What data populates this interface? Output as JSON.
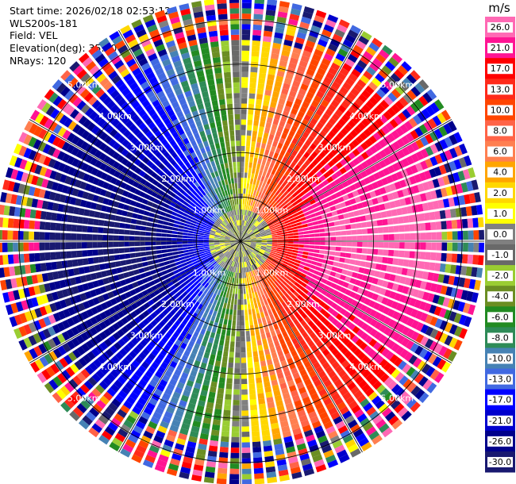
{
  "info": {
    "start_time": "Start time: 2026/02/18 02:53:12",
    "instrument": "WLS200s-181",
    "field": "Field: VEL",
    "elevation": "Elevation(deg): 35.00",
    "nrays": "NRays: 120"
  },
  "chart_data": {
    "type": "heatmap",
    "subtype": "polar-ppi",
    "title": "",
    "field": "VEL",
    "units": "m/s",
    "n_rays": 120,
    "elevation_deg": 35.0,
    "max_range_km": 5.5,
    "range_ring_labels": [
      "1.00km",
      "2.00km",
      "3.00km",
      "4.00km",
      "5.00km"
    ],
    "range_rings_km": [
      1,
      2,
      3,
      4,
      5
    ],
    "colorbar": {
      "unit_label": "m/s",
      "tick_labels": [
        "26.0",
        "21.0",
        "17.0",
        "13.0",
        "10.0",
        "8.0",
        "6.0",
        "4.0",
        "2.0",
        "1.0",
        "0.0",
        "-1.0",
        "-2.0",
        "-4.0",
        "-6.0",
        "-8.0",
        "-10.0",
        "-13.0",
        "-17.0",
        "-21.0",
        "-26.0",
        "-30.0"
      ],
      "bins": [
        {
          "min": 26,
          "max": 30,
          "color": "#ff69b4"
        },
        {
          "min": 21,
          "max": 26,
          "color": "#ff1493"
        },
        {
          "min": 17,
          "max": 21,
          "color": "#ff0000"
        },
        {
          "min": 13,
          "max": 17,
          "color": "#ff2a1a"
        },
        {
          "min": 10,
          "max": 13,
          "color": "#ff4500"
        },
        {
          "min": 8,
          "max": 10,
          "color": "#ff6347"
        },
        {
          "min": 6,
          "max": 8,
          "color": "#ff7f50"
        },
        {
          "min": 4,
          "max": 6,
          "color": "#ffa500"
        },
        {
          "min": 2,
          "max": 4,
          "color": "#ffd700"
        },
        {
          "min": 1,
          "max": 2,
          "color": "#ffff00"
        },
        {
          "min": 0,
          "max": 1,
          "color": "#808080"
        },
        {
          "min": -1,
          "max": 0,
          "color": "#696969"
        },
        {
          "min": -2,
          "max": -1,
          "color": "#9acd32"
        },
        {
          "min": -4,
          "max": -2,
          "color": "#6b8e23"
        },
        {
          "min": -6,
          "max": -4,
          "color": "#228b22"
        },
        {
          "min": -8,
          "max": -6,
          "color": "#2e8b57"
        },
        {
          "min": -10,
          "max": -8,
          "color": "#4682b4"
        },
        {
          "min": -13,
          "max": -10,
          "color": "#4169e1"
        },
        {
          "min": -17,
          "max": -13,
          "color": "#0000ff"
        },
        {
          "min": -21,
          "max": -17,
          "color": "#0000cd"
        },
        {
          "min": -26,
          "max": -21,
          "color": "#00008b"
        },
        {
          "min": -30,
          "max": -26,
          "color": "#191970"
        }
      ]
    },
    "wind_pattern": {
      "direction_toward_deg": 90,
      "max_speed_ms": 27,
      "description": "positive (red/pink) east, negative (dark blue) west, near-zero gray/yellow north-south"
    },
    "noise_beyond_km": 4.6,
    "grid": true
  }
}
